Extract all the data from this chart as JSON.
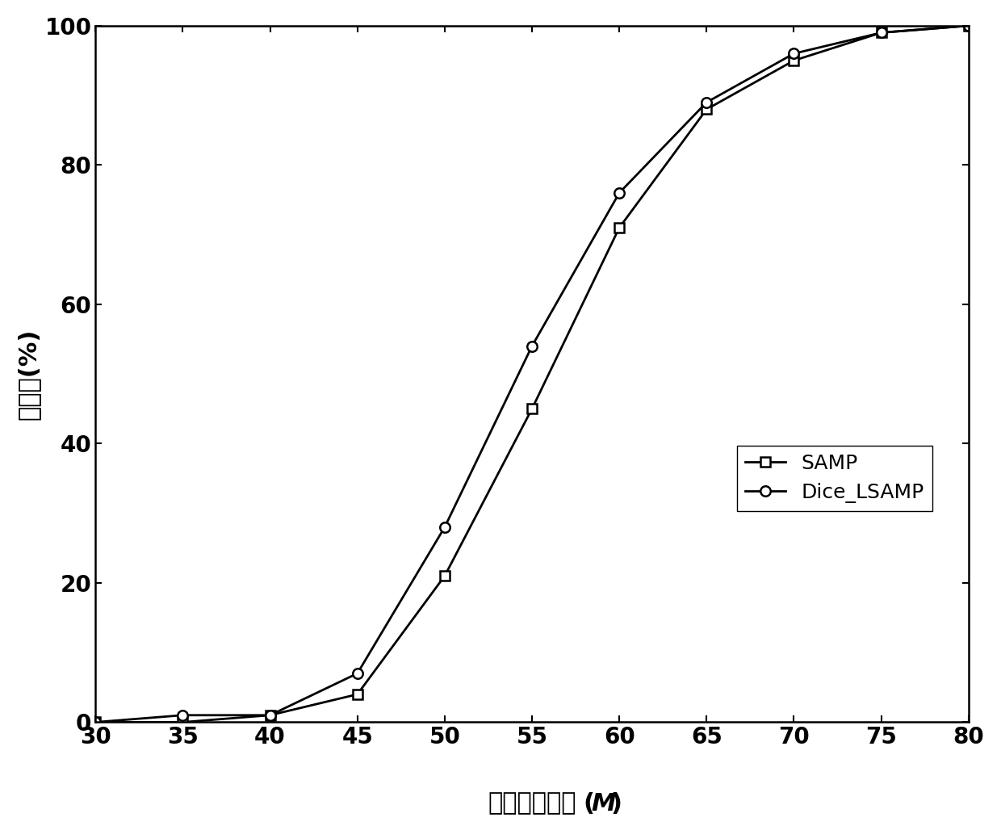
{
  "samp_x": [
    30,
    35,
    40,
    45,
    50,
    55,
    60,
    65,
    70,
    75,
    80
  ],
  "samp_y": [
    0,
    0,
    1,
    4,
    21,
    45,
    71,
    88,
    95,
    99,
    100
  ],
  "dice_x": [
    30,
    35,
    40,
    45,
    50,
    55,
    60,
    65,
    70,
    75,
    80
  ],
  "dice_y": [
    0,
    1,
    1,
    7,
    28,
    54,
    76,
    89,
    96,
    99,
    100
  ],
  "xlabel_chinese": "观测矩阵维度",
  "xlabel_italic": "M",
  "ylabel": "成功率(%)",
  "xlim": [
    30,
    80
  ],
  "ylim": [
    0,
    100
  ],
  "xticks": [
    30,
    35,
    40,
    45,
    50,
    55,
    60,
    65,
    70,
    75,
    80
  ],
  "yticks": [
    0,
    20,
    40,
    60,
    80,
    100
  ],
  "legend_labels": [
    "SAMP",
    "Dice_LSAMP"
  ],
  "line_color": "#000000",
  "background_color": "#ffffff",
  "label_fontsize": 22,
  "tick_fontsize": 20,
  "legend_fontsize": 18
}
